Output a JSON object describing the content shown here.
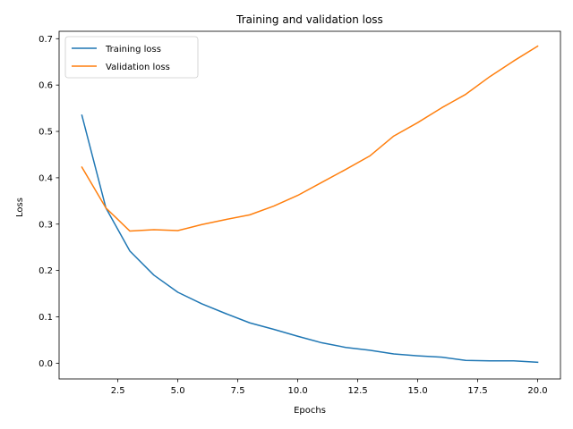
{
  "chart_data": {
    "type": "line",
    "title": "Training and validation loss",
    "xlabel": "Epochs",
    "ylabel": "Loss",
    "xlim": [
      0.05,
      20.95
    ],
    "ylim": [
      -0.034,
      0.716
    ],
    "xticks": [
      2.5,
      5.0,
      7.5,
      10.0,
      12.5,
      15.0,
      17.5,
      20.0
    ],
    "xtick_labels": [
      "2.5",
      "5.0",
      "7.5",
      "10.0",
      "12.5",
      "15.0",
      "17.5",
      "20.0"
    ],
    "yticks": [
      0.0,
      0.1,
      0.2,
      0.3,
      0.4,
      0.5,
      0.6,
      0.7
    ],
    "ytick_labels": [
      "0.0",
      "0.1",
      "0.2",
      "0.3",
      "0.4",
      "0.5",
      "0.6",
      "0.7"
    ],
    "grid": false,
    "legend_position": "top-left",
    "x": [
      1,
      2,
      3,
      4,
      5,
      6,
      7,
      8,
      9,
      10,
      11,
      12,
      13,
      14,
      15,
      16,
      17,
      18,
      19,
      20
    ],
    "series": [
      {
        "name": "Training loss",
        "color": "#1f77b4",
        "values": [
          0.535,
          0.335,
          0.242,
          0.19,
          0.153,
          0.128,
          0.107,
          0.087,
          0.073,
          0.058,
          0.044,
          0.034,
          0.028,
          0.02,
          0.016,
          0.013,
          0.006,
          0.005,
          0.005,
          0.002
        ]
      },
      {
        "name": "Validation loss",
        "color": "#ff7f0e",
        "values": [
          0.423,
          0.335,
          0.285,
          0.288,
          0.286,
          0.299,
          0.31,
          0.32,
          0.339,
          0.362,
          0.39,
          0.418,
          0.447,
          0.49,
          0.519,
          0.551,
          0.58,
          0.618,
          0.652,
          0.684
        ]
      }
    ]
  }
}
